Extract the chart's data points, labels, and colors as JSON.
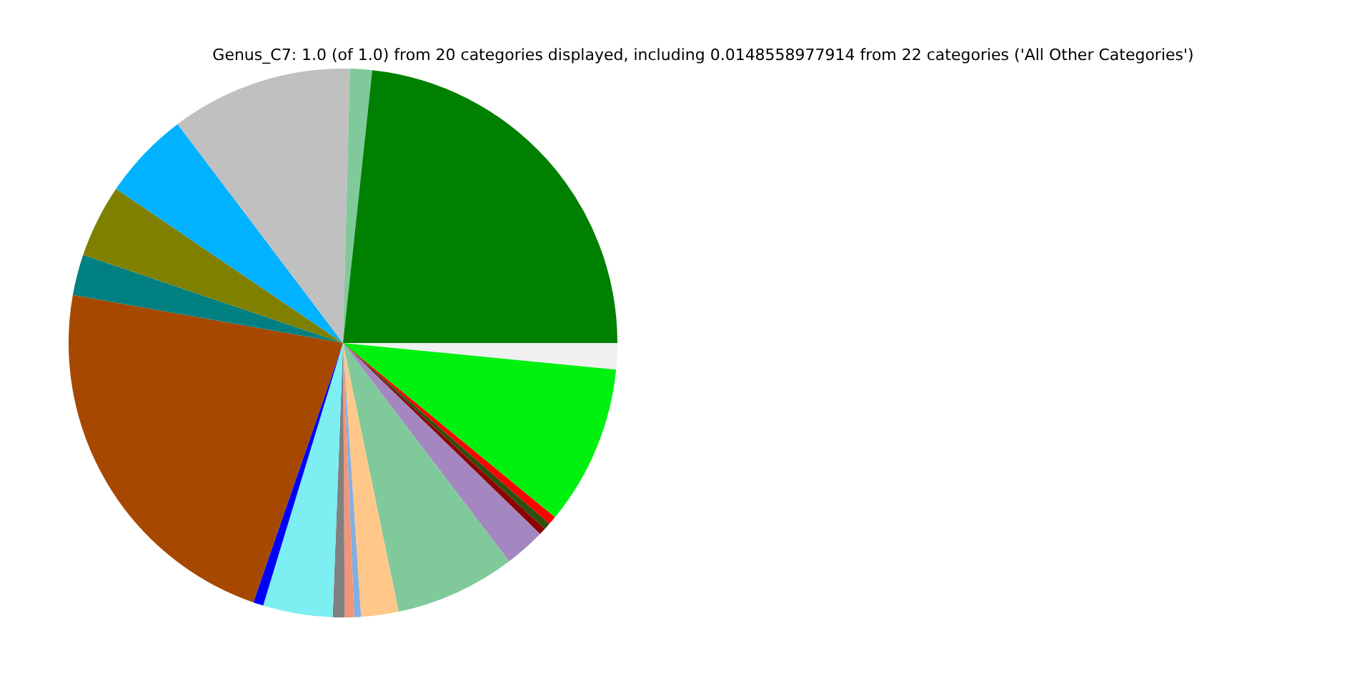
{
  "chart_data": {
    "type": "pie",
    "title": "Genus_C7: 1.0 (of 1.0) from 20 categories displayed, including 0.0148558977914 from 22 categories ('All Other Categories')",
    "categories": [
      null,
      null,
      null,
      null,
      null,
      null,
      null,
      null,
      null,
      null,
      null,
      null,
      null,
      null,
      null,
      null,
      null,
      null,
      null,
      null
    ],
    "values": [
      1.55,
      9.4,
      0.5,
      0.4,
      0.4,
      2.4,
      7.1,
      2.2,
      0.4,
      0.55,
      0.7,
      4.1,
      0.6,
      22.5,
      2.4,
      4.3,
      5.2,
      10.7,
      1.3,
      23.3
    ],
    "colors": [
      "#f0f0f0",
      "#00f010",
      "#ff0000",
      "#2f4f0f",
      "#8b0000",
      "#a487c0",
      "#80c99b",
      "#ffc88a",
      "#84aee0",
      "#f0957a",
      "#808080",
      "#7deef2",
      "#0000ff",
      "#a64800",
      "#008080",
      "#808000",
      "#00b2ff",
      "#c0c0c0",
      "#80c99b",
      "#008000"
    ]
  }
}
